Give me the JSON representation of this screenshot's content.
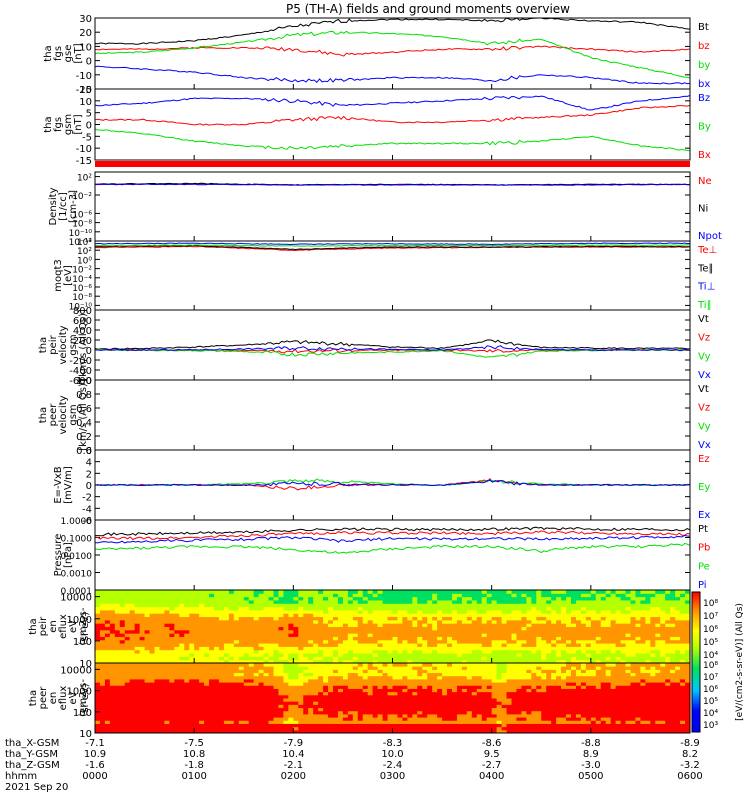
{
  "title": "P5 (TH-A) fields and ground moments overview",
  "colors": {
    "black": "#000000",
    "red": "#ff0000",
    "green": "#00e000",
    "blue": "#0000ff"
  },
  "chart_data": [
    {
      "type": "line",
      "panel": "fgs_gse",
      "ylabel_lines": [
        "tha",
        "fgs",
        "gse",
        "[nT]"
      ],
      "ylim": [
        -20,
        30
      ],
      "yticks": [
        -20,
        -10,
        0,
        10,
        20,
        30
      ],
      "series": [
        {
          "name": "Bt",
          "color": "#000000",
          "x": [
            0,
            50,
            100,
            150,
            200,
            250,
            300,
            350,
            400,
            450,
            500,
            550,
            600
          ],
          "values": [
            12,
            12,
            14,
            18,
            24,
            28,
            29,
            29,
            28,
            30,
            28,
            27,
            22
          ]
        },
        {
          "name": "bz",
          "color": "#ff0000",
          "x": [
            0,
            50,
            100,
            150,
            200,
            250,
            300,
            350,
            400,
            450,
            500,
            550,
            600
          ],
          "values": [
            8,
            8,
            9,
            9,
            8,
            4,
            6,
            8,
            8,
            10,
            8,
            6,
            8
          ]
        },
        {
          "name": "by",
          "color": "#00e000",
          "x": [
            0,
            50,
            100,
            150,
            200,
            250,
            300,
            350,
            400,
            450,
            500,
            550,
            600
          ],
          "values": [
            5,
            6,
            9,
            13,
            18,
            20,
            19,
            17,
            12,
            15,
            2,
            -5,
            -12
          ]
        },
        {
          "name": "bx",
          "color": "#0000ff",
          "x": [
            0,
            50,
            100,
            150,
            200,
            250,
            300,
            350,
            400,
            450,
            500,
            550,
            600
          ],
          "values": [
            -4,
            -6,
            -8,
            -12,
            -14,
            -14,
            -12,
            -12,
            -14,
            -10,
            -12,
            -16,
            -16
          ]
        }
      ]
    },
    {
      "type": "line",
      "panel": "fgs_gsm",
      "ylabel_lines": [
        "tha",
        "fgs",
        "gsm",
        "[nT]"
      ],
      "ylim": [
        -15,
        15
      ],
      "yticks": [
        -15,
        -10,
        -5,
        0,
        5,
        10,
        15
      ],
      "series": [
        {
          "name": "Bz",
          "color": "#0000ff",
          "x": [
            0,
            50,
            100,
            150,
            200,
            250,
            300,
            350,
            400,
            450,
            500,
            550,
            600
          ],
          "values": [
            8,
            9,
            11,
            11,
            10,
            8,
            9,
            10,
            11,
            12,
            6,
            10,
            12
          ]
        },
        {
          "name": "By",
          "color": "#00e000",
          "x": [
            0,
            50,
            100,
            150,
            200,
            250,
            300,
            350,
            400,
            450,
            500,
            550,
            600
          ],
          "values": [
            -2,
            -4,
            -7,
            -9,
            -10,
            -9,
            -8,
            -8,
            -8,
            -7,
            -5,
            -9,
            -11
          ]
        },
        {
          "name": "Bx",
          "color": "#ff0000",
          "x": [
            0,
            50,
            100,
            150,
            200,
            250,
            300,
            350,
            400,
            450,
            500,
            550,
            600
          ],
          "values": [
            2,
            2,
            0,
            0,
            2,
            3,
            1,
            1,
            2,
            3,
            4,
            7,
            8
          ]
        }
      ]
    },
    {
      "type": "line",
      "panel": "density",
      "yscale": "log",
      "ylabel_lines": [
        "Density",
        "[1/cc]",
        "[cm-3]"
      ],
      "ylim": [
        -12,
        3
      ],
      "yticklabels": [
        "10²",
        "10⁻²",
        "10⁻⁶",
        "10⁻⁸",
        "10⁻¹⁰",
        "10⁻¹²"
      ],
      "ytickexp": [
        2,
        -2,
        -6,
        -8,
        -10,
        -12
      ],
      "series": [
        {
          "name": "Ne",
          "color": "#ff0000",
          "x": [
            0,
            100,
            200,
            300,
            400,
            500,
            600
          ],
          "values": [
            0.3,
            0.4,
            0.2,
            0.3,
            0.2,
            0.3,
            0.3
          ]
        },
        {
          "name": "Ni",
          "color": "#000000",
          "x": [
            0,
            100,
            200,
            300,
            400,
            500,
            600
          ],
          "values": [
            0.4,
            0.5,
            0.2,
            0.3,
            0.2,
            0.3,
            0.3
          ]
        },
        {
          "name": "Npot",
          "color": "#0000ff",
          "x": [
            0,
            100,
            200,
            300,
            400,
            500,
            600
          ],
          "values": [
            0.3,
            0.3,
            0.2,
            0.2,
            0.2,
            0.2,
            0.3
          ]
        }
      ]
    },
    {
      "type": "line",
      "panel": "temperature",
      "yscale": "log",
      "ylabel_lines": [
        "moqt3",
        "[eV]"
      ],
      "ylim": [
        -11,
        4
      ],
      "yticklabels": [
        "10⁴",
        "10²",
        "10⁰",
        "10⁻²",
        "10⁻⁴",
        "10⁻⁶",
        "10⁻⁸",
        "10⁻¹⁰"
      ],
      "ytickexp": [
        4,
        2,
        0,
        -2,
        -4,
        -6,
        -8,
        -10
      ],
      "series": [
        {
          "name": "Te⊥",
          "color": "#ff0000",
          "x": [
            0,
            100,
            200,
            300,
            400,
            500,
            600
          ],
          "values": [
            2.6,
            2.8,
            2.0,
            2.5,
            2.6,
            2.7,
            2.7
          ]
        },
        {
          "name": "Te∥",
          "color": "#000000",
          "x": [
            0,
            100,
            200,
            300,
            400,
            500,
            600
          ],
          "values": [
            2.8,
            3.0,
            2.2,
            2.7,
            2.7,
            2.8,
            2.8
          ]
        },
        {
          "name": "Ti⊥",
          "color": "#0000ff",
          "x": [
            0,
            100,
            200,
            300,
            400,
            500,
            600
          ],
          "values": [
            3.4,
            3.5,
            3.3,
            3.4,
            3.3,
            3.5,
            3.5
          ]
        },
        {
          "name": "Ti∥",
          "color": "#00e000",
          "x": [
            0,
            100,
            200,
            300,
            400,
            500,
            600
          ],
          "values": [
            3.0,
            3.1,
            2.9,
            3.0,
            3.0,
            3.1,
            3.1
          ]
        }
      ]
    },
    {
      "type": "line",
      "panel": "peir_velocity",
      "ylabel_lines": [
        "tha",
        "peir",
        "velocity",
        "gsm",
        "[km/s (All Qs)]"
      ],
      "ylim": [
        -600,
        800
      ],
      "yticks": [
        -600,
        -400,
        -200,
        0,
        200,
        400,
        600,
        800
      ],
      "series": [
        {
          "name": "Vt",
          "color": "#000000",
          "x": [
            0,
            50,
            100,
            150,
            200,
            250,
            300,
            350,
            400,
            450,
            500,
            550,
            600
          ],
          "values": [
            20,
            30,
            60,
            100,
            160,
            120,
            60,
            40,
            180,
            50,
            40,
            30,
            30
          ]
        },
        {
          "name": "Vz",
          "color": "#ff0000",
          "x": [
            0,
            50,
            100,
            150,
            200,
            250,
            300,
            350,
            400,
            450,
            500,
            550,
            600
          ],
          "values": [
            0,
            0,
            -5,
            -10,
            -20,
            -10,
            -5,
            0,
            -20,
            0,
            0,
            0,
            0
          ]
        },
        {
          "name": "Vy",
          "color": "#00e000",
          "x": [
            0,
            50,
            100,
            150,
            200,
            250,
            300,
            350,
            400,
            450,
            500,
            550,
            600
          ],
          "values": [
            0,
            -5,
            -10,
            -30,
            -90,
            -60,
            -40,
            -10,
            -160,
            -20,
            -5,
            0,
            0
          ]
        },
        {
          "name": "Vx",
          "color": "#0000ff",
          "x": [
            0,
            50,
            100,
            150,
            200,
            250,
            300,
            350,
            400,
            450,
            500,
            550,
            600
          ],
          "values": [
            0,
            0,
            5,
            20,
            40,
            30,
            10,
            0,
            60,
            10,
            0,
            0,
            0
          ]
        }
      ]
    },
    {
      "type": "line",
      "panel": "peer_velocity",
      "ylabel_lines": [
        "tha",
        "peer",
        "velocity",
        "gsm",
        "[km/s (All Qs)]"
      ],
      "ylim": [
        0,
        1
      ],
      "yticks": [
        0.0,
        0.2,
        0.4,
        0.6,
        0.8,
        1.0
      ],
      "series": [
        {
          "name": "Vt",
          "color": "#000000",
          "x": [],
          "values": []
        },
        {
          "name": "Vz",
          "color": "#ff0000",
          "x": [],
          "values": []
        },
        {
          "name": "Vy",
          "color": "#00e000",
          "x": [],
          "values": []
        },
        {
          "name": "Vx",
          "color": "#0000ff",
          "x": [],
          "values": []
        }
      ]
    },
    {
      "type": "line",
      "panel": "e_field",
      "ylabel_lines": [
        "E=-VxB",
        "[mV/m]"
      ],
      "ylim": [
        -6,
        6
      ],
      "yticks": [
        -6,
        -4,
        -2,
        0,
        2,
        4,
        6
      ],
      "series": [
        {
          "name": "Ez",
          "color": "#ff0000",
          "x": [
            0,
            50,
            100,
            150,
            200,
            250,
            300,
            350,
            400,
            450,
            500,
            550,
            600
          ],
          "values": [
            0,
            0,
            0,
            0,
            -0.6,
            0,
            0,
            0,
            0.8,
            0,
            0,
            0,
            0
          ]
        },
        {
          "name": "Ey",
          "color": "#00e000",
          "x": [
            0,
            50,
            100,
            150,
            200,
            250,
            300,
            350,
            400,
            450,
            500,
            550,
            600
          ],
          "values": [
            0,
            0,
            0,
            0.2,
            0.8,
            0.6,
            0.2,
            0,
            0.6,
            0.2,
            0,
            0,
            0
          ]
        },
        {
          "name": "Ex",
          "color": "#0000ff",
          "x": [
            0,
            50,
            100,
            150,
            200,
            250,
            300,
            350,
            400,
            450,
            500,
            550,
            600
          ],
          "values": [
            0,
            0,
            0,
            0,
            0.2,
            0.2,
            0,
            0,
            0.6,
            0,
            0,
            0,
            0
          ]
        }
      ]
    },
    {
      "type": "line",
      "panel": "pressure",
      "yscale": "log",
      "ylabel_lines": [
        "Pressure",
        "[nPa]"
      ],
      "ylim": [
        -4,
        0
      ],
      "yticklabels": [
        "1.0000",
        "0.1000",
        "0.0100",
        "0.0010",
        "0.0001"
      ],
      "ytickexp": [
        0,
        -1,
        -2,
        -3,
        -4
      ],
      "series": [
        {
          "name": "Pt",
          "color": "#000000",
          "x": [
            0,
            50,
            100,
            150,
            200,
            250,
            300,
            350,
            400,
            450,
            500,
            550,
            600
          ],
          "values": [
            0.15,
            0.16,
            0.18,
            0.2,
            0.26,
            0.3,
            0.29,
            0.28,
            0.3,
            0.34,
            0.3,
            0.3,
            0.28
          ]
        },
        {
          "name": "Pb",
          "color": "#ff0000",
          "x": [
            0,
            50,
            100,
            150,
            200,
            250,
            300,
            350,
            400,
            450,
            500,
            550,
            600
          ],
          "values": [
            0.09,
            0.09,
            0.1,
            0.13,
            0.16,
            0.19,
            0.18,
            0.18,
            0.17,
            0.2,
            0.18,
            0.17,
            0.15
          ]
        },
        {
          "name": "Pe",
          "color": "#00e000",
          "x": [
            0,
            50,
            100,
            150,
            200,
            250,
            300,
            350,
            400,
            450,
            500,
            550,
            600
          ],
          "values": [
            0.02,
            0.025,
            0.03,
            0.03,
            0.02,
            0.012,
            0.022,
            0.03,
            0.03,
            0.016,
            0.03,
            0.03,
            0.04
          ]
        },
        {
          "name": "Pi",
          "color": "#0000ff",
          "x": [
            0,
            50,
            100,
            150,
            200,
            250,
            300,
            350,
            400,
            450,
            500,
            550,
            600
          ],
          "values": [
            0.05,
            0.06,
            0.07,
            0.08,
            0.1,
            0.06,
            0.09,
            0.08,
            0.09,
            0.08,
            0.09,
            0.1,
            0.12
          ]
        }
      ]
    },
    {
      "type": "heatmap",
      "panel": "peir_eflux",
      "ylabel_lines": [
        "tha",
        "peir",
        "en",
        "eflux",
        "eV",
        "(cm2-s-",
        "sr-eV)"
      ],
      "yscale": "log",
      "ylim": [
        1,
        4.3
      ],
      "yticks": [
        10,
        100,
        1000,
        10000
      ],
      "x": [
        0,
        60,
        120,
        180,
        200,
        210,
        240,
        300,
        360,
        400,
        410,
        420,
        480,
        540,
        600
      ],
      "low_level": [
        5.2,
        5.2,
        5.0,
        4.8,
        4.2,
        5.0,
        4.8,
        4.6,
        4.6,
        4.6,
        4.3,
        4.7,
        4.8,
        4.8,
        4.8
      ],
      "high_level": [
        7.6,
        7.4,
        7.2,
        7.2,
        7.6,
        7.2,
        7.0,
        7.0,
        7.0,
        7.0,
        7.2,
        7.0,
        7.0,
        7.0,
        7.0
      ]
    },
    {
      "type": "heatmap",
      "panel": "peer_eflux",
      "ylabel_lines": [
        "tha",
        "peer",
        "en",
        "eflux",
        "eV",
        "(cm2-s-",
        "sr-eV)"
      ],
      "yscale": "log",
      "ylim": [
        1,
        4.3
      ],
      "yticks": [
        10,
        100,
        1000,
        10000
      ],
      "x": [
        0,
        60,
        120,
        180,
        200,
        210,
        240,
        300,
        360,
        400,
        410,
        420,
        480,
        540,
        600
      ],
      "low_level": [
        6.6,
        6.7,
        6.6,
        6.3,
        5.0,
        5.6,
        6.2,
        6.2,
        6.2,
        6.0,
        5.2,
        6.0,
        6.3,
        6.4,
        6.5
      ],
      "high_level": [
        8.0,
        8.2,
        8.2,
        8.0,
        7.2,
        7.6,
        7.8,
        7.8,
        7.8,
        7.8,
        7.2,
        7.8,
        8.0,
        8.1,
        8.2
      ]
    }
  ],
  "colorbar": {
    "label": "[eV/(cm2-s-sr-eV)]",
    "upper_label": "[eV/(cm2-s-sr-eV)] (All Qs)",
    "top_ticks": [
      "10⁸",
      "10⁷",
      "10⁶",
      "10⁵",
      "10⁴"
    ],
    "bottom_ticks": [
      "10⁸",
      "10⁷",
      "10⁶",
      "10⁵",
      "10⁴",
      "10³"
    ]
  },
  "xaxis": {
    "time_ticks": [
      "0000",
      "0100",
      "0200",
      "0300",
      "0400",
      "0500",
      "0600"
    ],
    "rows": [
      {
        "label": "tha_X-GSM",
        "values": [
          "-7.1",
          "-7.5",
          "-7.9",
          "-8.3",
          "-8.6",
          "-8.8",
          "-8.9"
        ]
      },
      {
        "label": "tha_Y-GSM",
        "values": [
          "10.9",
          "10.8",
          "10.4",
          "10.0",
          "9.5",
          "8.9",
          "8.2"
        ]
      },
      {
        "label": "tha_Z-GSM",
        "values": [
          "-1.6",
          "-1.8",
          "-2.1",
          "-2.4",
          "-2.7",
          "-3.0",
          "-3.2"
        ]
      },
      {
        "label": "hhmm",
        "values": [
          "0000",
          "0100",
          "0200",
          "0300",
          "0400",
          "0500",
          "0600"
        ]
      }
    ],
    "date": "2021 Sep 20"
  }
}
